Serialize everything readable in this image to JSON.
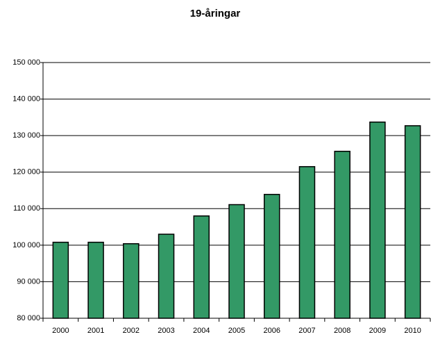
{
  "chart_data": {
    "type": "bar",
    "title": "19-åringar",
    "categories": [
      "2000",
      "2001",
      "2002",
      "2003",
      "2004",
      "2005",
      "2006",
      "2007",
      "2008",
      "2009",
      "2010"
    ],
    "values": [
      100800,
      100800,
      100400,
      103000,
      108000,
      111100,
      113900,
      121500,
      125700,
      133700,
      132700
    ],
    "color": "#339966",
    "ylim": [
      80000,
      150000
    ],
    "yticks": [
      {
        "value": 80000,
        "label": "80 000"
      },
      {
        "value": 90000,
        "label": "90 000"
      },
      {
        "value": 100000,
        "label": "100 000"
      },
      {
        "value": 110000,
        "label": "110 000"
      },
      {
        "value": 120000,
        "label": "120 000"
      },
      {
        "value": 130000,
        "label": "130 000"
      },
      {
        "value": 140000,
        "label": "140 000"
      },
      {
        "value": 150000,
        "label": "150 000"
      }
    ],
    "grid": true
  }
}
